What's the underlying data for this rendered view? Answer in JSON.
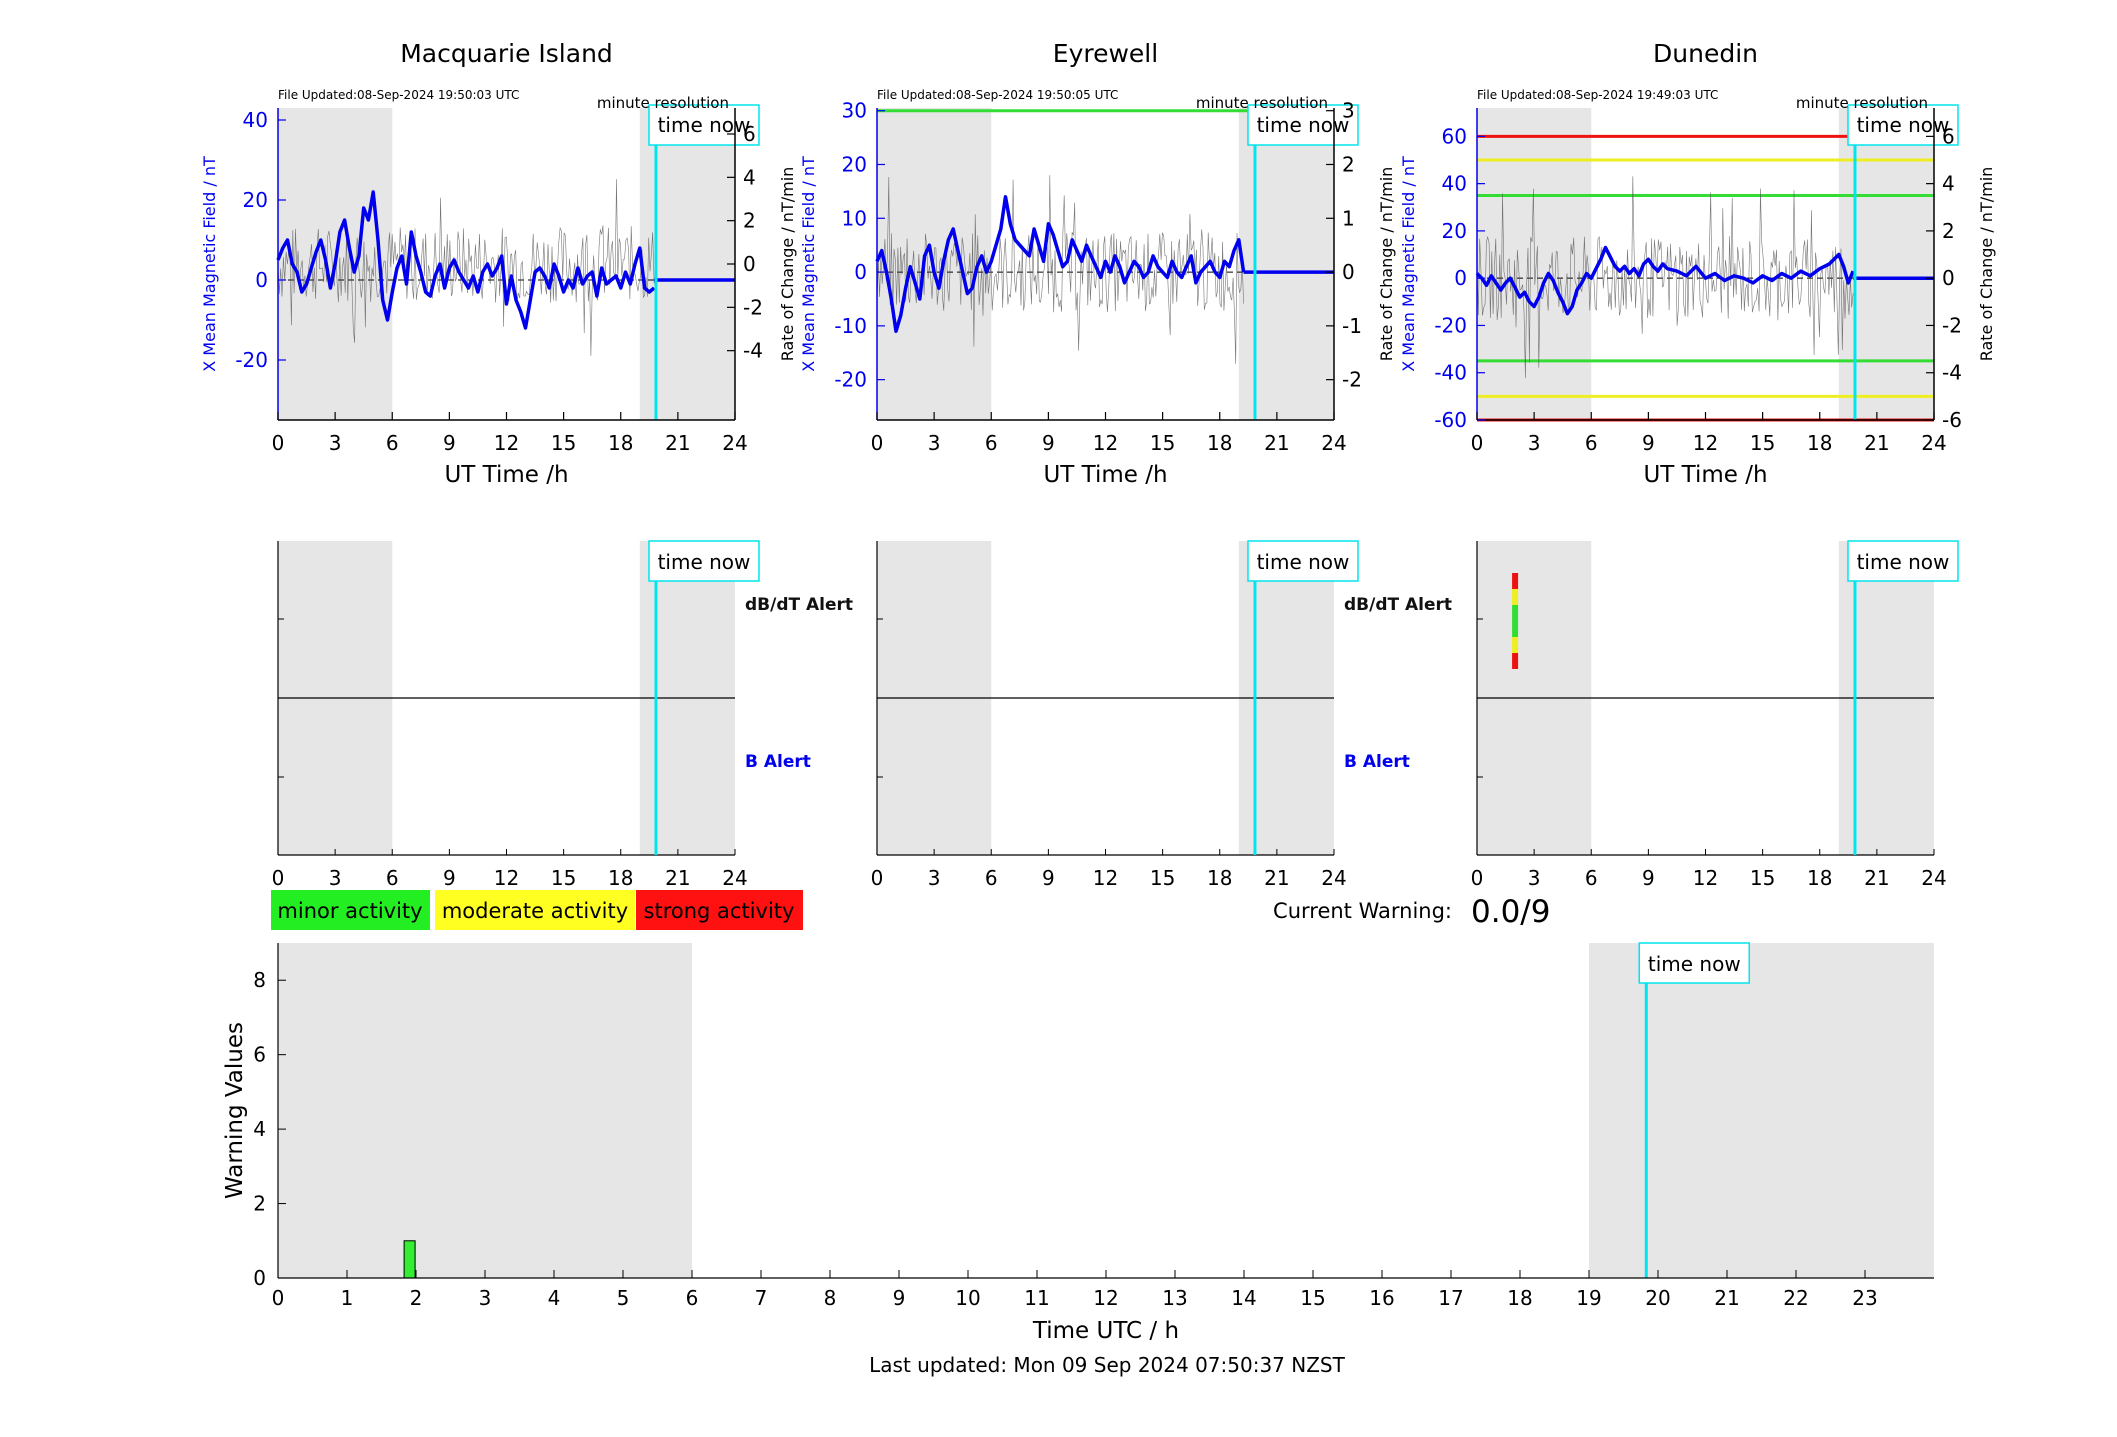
{
  "chart_data": [
    {
      "type": "line",
      "title": "Macquarie Island",
      "file_updated": "File Updated:08-Sep-2024 19:50:03 UTC",
      "resolution_label": "minute resolution",
      "xlabel": "UT Time /h",
      "ylabel": "X Mean Magnetic Field / nT",
      "ylabel_right": "Rate of Change / nT/min",
      "xlim": [
        0,
        24
      ],
      "ylim": [
        -35,
        43
      ],
      "ylim_right": [
        -7.2,
        7.2
      ],
      "xticks": [
        0,
        3,
        6,
        9,
        12,
        15,
        18,
        21,
        24
      ],
      "yticks": [
        -20,
        0,
        20,
        40
      ],
      "yticks_right": [
        -4,
        -2,
        0,
        2,
        4,
        6
      ],
      "shaded_hours": [
        [
          0,
          6
        ],
        [
          19,
          24
        ]
      ],
      "time_now": 19.85,
      "time_now_label": "time now",
      "threshold_lines": [],
      "series": [
        {
          "x": [
            0,
            0.25,
            0.5,
            0.75,
            1.0,
            1.25,
            1.5,
            1.75,
            2.0,
            2.25,
            2.5,
            2.75,
            3.0,
            3.25,
            3.5,
            3.75,
            4.0,
            4.25,
            4.5,
            4.75,
            5.0,
            5.25,
            5.5,
            5.75,
            6.0,
            6.25,
            6.5,
            6.75,
            7.0,
            7.25,
            7.5,
            7.75,
            8.0,
            8.25,
            8.5,
            8.75,
            9.0,
            9.25,
            9.5,
            9.75,
            10.0,
            10.25,
            10.5,
            10.75,
            11.0,
            11.25,
            11.5,
            11.75,
            12.0,
            12.25,
            12.5,
            12.75,
            13.0,
            13.25,
            13.5,
            13.75,
            14.0,
            14.25,
            14.5,
            14.75,
            15.0,
            15.25,
            15.5,
            15.75,
            16.0,
            16.25,
            16.5,
            16.75,
            17.0,
            17.25,
            17.5,
            17.75,
            18.0,
            18.25,
            18.5,
            18.75,
            19.0,
            19.25,
            19.5,
            19.75
          ],
          "values": [
            5,
            8,
            10,
            4,
            2,
            -3,
            -1,
            3,
            7,
            10,
            5,
            -2,
            4,
            12,
            15,
            8,
            2,
            6,
            18,
            15,
            22,
            10,
            -5,
            -10,
            -3,
            3,
            6,
            -1,
            12,
            6,
            2,
            -3,
            -4,
            1,
            4,
            -2,
            3,
            5,
            2,
            0,
            -2,
            1,
            -3,
            2,
            4,
            1,
            3,
            6,
            -6,
            1,
            -5,
            -8,
            -12,
            -5,
            2,
            3,
            1,
            -2,
            4,
            1,
            -3,
            0,
            -2,
            3,
            -1,
            1,
            2,
            -4,
            3,
            -1,
            0,
            1,
            -2,
            2,
            -1,
            4,
            8,
            -2,
            -3,
            -2
          ]
        },
        {
          "x": [
            19.75,
            24
          ],
          "values": [
            0,
            0
          ]
        }
      ]
    },
    {
      "type": "line",
      "title": "Eyrewell",
      "file_updated": "File Updated:08-Sep-2024 19:50:05 UTC",
      "resolution_label": "minute resolution",
      "xlabel": "UT Time /h",
      "ylabel": "X Mean Magnetic Field / nT",
      "ylabel_right": "Rate of Change / nT/min",
      "xlim": [
        0,
        24
      ],
      "ylim": [
        -27.5,
        30.5
      ],
      "ylim_right": [
        -2.75,
        3.05
      ],
      "xticks": [
        0,
        3,
        6,
        9,
        12,
        15,
        18,
        21,
        24
      ],
      "yticks": [
        -20,
        -10,
        0,
        10,
        20,
        30
      ],
      "yticks_right": [
        -2,
        -1,
        0,
        1,
        2,
        3
      ],
      "shaded_hours": [
        [
          0,
          6
        ],
        [
          19,
          24
        ]
      ],
      "time_now": 19.85,
      "time_now_label": "time now",
      "threshold_lines": [
        {
          "y": 30,
          "color": "#33dd33"
        }
      ],
      "series": [
        {
          "x": [
            0,
            0.25,
            0.5,
            0.75,
            1.0,
            1.25,
            1.5,
            1.75,
            2.0,
            2.25,
            2.5,
            2.75,
            3.0,
            3.25,
            3.5,
            3.75,
            4.0,
            4.25,
            4.5,
            4.75,
            5.0,
            5.25,
            5.5,
            5.75,
            6.0,
            6.25,
            6.5,
            6.75,
            7.0,
            7.25,
            7.5,
            7.75,
            8.0,
            8.25,
            8.5,
            8.75,
            9.0,
            9.25,
            9.5,
            9.75,
            10.0,
            10.25,
            10.5,
            10.75,
            11.0,
            11.25,
            11.5,
            11.75,
            12.0,
            12.25,
            12.5,
            12.75,
            13.0,
            13.25,
            13.5,
            13.75,
            14.0,
            14.25,
            14.5,
            14.75,
            15.0,
            15.25,
            15.5,
            15.75,
            16.0,
            16.25,
            16.5,
            16.75,
            17.0,
            17.25,
            17.5,
            17.75,
            18.0,
            18.25,
            18.5,
            18.75,
            19.0,
            19.25
          ],
          "values": [
            2,
            4,
            0,
            -5,
            -11,
            -8,
            -3,
            1,
            -2,
            -5,
            3,
            5,
            0,
            -3,
            2,
            6,
            8,
            4,
            0,
            -4,
            -3,
            1,
            3,
            0,
            2,
            5,
            8,
            14,
            9,
            6,
            5,
            4,
            3,
            8,
            5,
            2,
            9,
            7,
            4,
            1,
            2,
            6,
            4,
            2,
            5,
            3,
            1,
            -1,
            2,
            0,
            3,
            1,
            -2,
            0,
            2,
            1,
            -1,
            0,
            3,
            1,
            0,
            -1,
            2,
            0,
            -1,
            1,
            3,
            -2,
            0,
            1,
            2,
            0,
            -1,
            2,
            1,
            4,
            6,
            0
          ]
        },
        {
          "x": [
            19.25,
            24
          ],
          "values": [
            0,
            0
          ]
        }
      ]
    },
    {
      "type": "line",
      "title": "Dunedin",
      "file_updated": "File Updated:08-Sep-2024 19:49:03 UTC",
      "resolution_label": "minute resolution",
      "xlabel": "UT Time /h",
      "ylabel": "X Mean Magnetic Field / nT",
      "ylabel_right": "Rate of Change / nT/min",
      "xlim": [
        0,
        24
      ],
      "ylim": [
        -60,
        72
      ],
      "ylim_right": [
        -6,
        7.2
      ],
      "xticks": [
        0,
        3,
        6,
        9,
        12,
        15,
        18,
        21,
        24
      ],
      "yticks": [
        -60,
        -40,
        -20,
        0,
        20,
        40,
        60
      ],
      "yticks_right": [
        -6,
        -4,
        -2,
        0,
        2,
        4,
        6
      ],
      "shaded_hours": [
        [
          0,
          6
        ],
        [
          19,
          24
        ]
      ],
      "time_now": 19.85,
      "time_now_label": "time now",
      "threshold_lines": [
        {
          "y": 60,
          "color": "#ee1111"
        },
        {
          "y": 50,
          "color": "#eeee22"
        },
        {
          "y": 35,
          "color": "#33dd33"
        },
        {
          "y": -35,
          "color": "#33dd33"
        },
        {
          "y": -50,
          "color": "#eeee22"
        },
        {
          "y": -60,
          "color": "#ee1111"
        }
      ],
      "series": [
        {
          "x": [
            0,
            0.25,
            0.5,
            0.75,
            1.0,
            1.25,
            1.5,
            1.75,
            2.0,
            2.25,
            2.5,
            2.75,
            3.0,
            3.25,
            3.5,
            3.75,
            4.0,
            4.25,
            4.5,
            4.75,
            5.0,
            5.25,
            5.5,
            5.75,
            6.0,
            6.25,
            6.5,
            6.75,
            7.0,
            7.25,
            7.5,
            7.75,
            8.0,
            8.25,
            8.5,
            8.75,
            9.0,
            9.25,
            9.5,
            9.75,
            10.0,
            10.5,
            11.0,
            11.5,
            12.0,
            12.5,
            13.0,
            13.5,
            14.0,
            14.5,
            15.0,
            15.5,
            16.0,
            16.5,
            17.0,
            17.5,
            18.0,
            18.5,
            19.0,
            19.25,
            19.5,
            19.75
          ],
          "values": [
            2,
            0,
            -3,
            1,
            -2,
            -5,
            -2,
            0,
            -4,
            -8,
            -6,
            -10,
            -12,
            -8,
            -2,
            2,
            -1,
            -6,
            -10,
            -15,
            -12,
            -5,
            -2,
            2,
            0,
            4,
            8,
            13,
            9,
            5,
            3,
            5,
            2,
            4,
            1,
            6,
            8,
            5,
            3,
            6,
            4,
            3,
            1,
            5,
            0,
            2,
            -1,
            1,
            0,
            -2,
            1,
            -1,
            2,
            0,
            3,
            1,
            4,
            6,
            10,
            5,
            -2,
            3
          ]
        },
        {
          "x": [
            19.75,
            24
          ],
          "values": [
            0,
            0
          ]
        }
      ]
    },
    {
      "type": "bar",
      "xlabel": "Time UTC / h",
      "ylabel": "Warning Values",
      "xlim": [
        0,
        24
      ],
      "ylim": [
        0,
        9
      ],
      "xticks": [
        0,
        1,
        2,
        3,
        4,
        5,
        6,
        7,
        8,
        9,
        10,
        11,
        12,
        13,
        14,
        15,
        16,
        17,
        18,
        19,
        20,
        21,
        22,
        23
      ],
      "yticks": [
        0,
        2,
        4,
        6,
        8
      ],
      "shaded_hours": [
        [
          0,
          6
        ],
        [
          19,
          24
        ]
      ],
      "time_now": 19.83,
      "time_now_label": "time now",
      "bars": [
        {
          "x": 1.9,
          "value": 1,
          "color": "#33ee33"
        }
      ]
    }
  ],
  "alerts": {
    "db_dt_label": "dB/dT Alert",
    "b_label": "B Alert",
    "xticks": [
      0,
      3,
      6,
      9,
      12,
      15,
      18,
      21,
      24
    ],
    "time_now_label": "time now",
    "dunedin_markers": [
      {
        "x": 2,
        "colors": [
          "#ee1111",
          "#eeee22",
          "#33dd33",
          "#33dd33",
          "#eeee22",
          "#ee1111"
        ]
      }
    ]
  },
  "legend": {
    "minor": "minor activity",
    "moderate": "moderate activity",
    "strong": "strong activity",
    "colors": {
      "minor": "#22ee22",
      "moderate": "#ffff22",
      "strong": "#ff1111"
    }
  },
  "current_warning": {
    "label": "Current Warning:",
    "value": "0.0/9"
  },
  "footer": {
    "last_updated": "Last updated: Mon 09 Sep 2024 07:50:37 NZST"
  },
  "colors": {
    "series": "#0000ee",
    "time_now": "#00e5ee",
    "shade": "#e6e6e6",
    "axis_left": "#0000ee"
  }
}
